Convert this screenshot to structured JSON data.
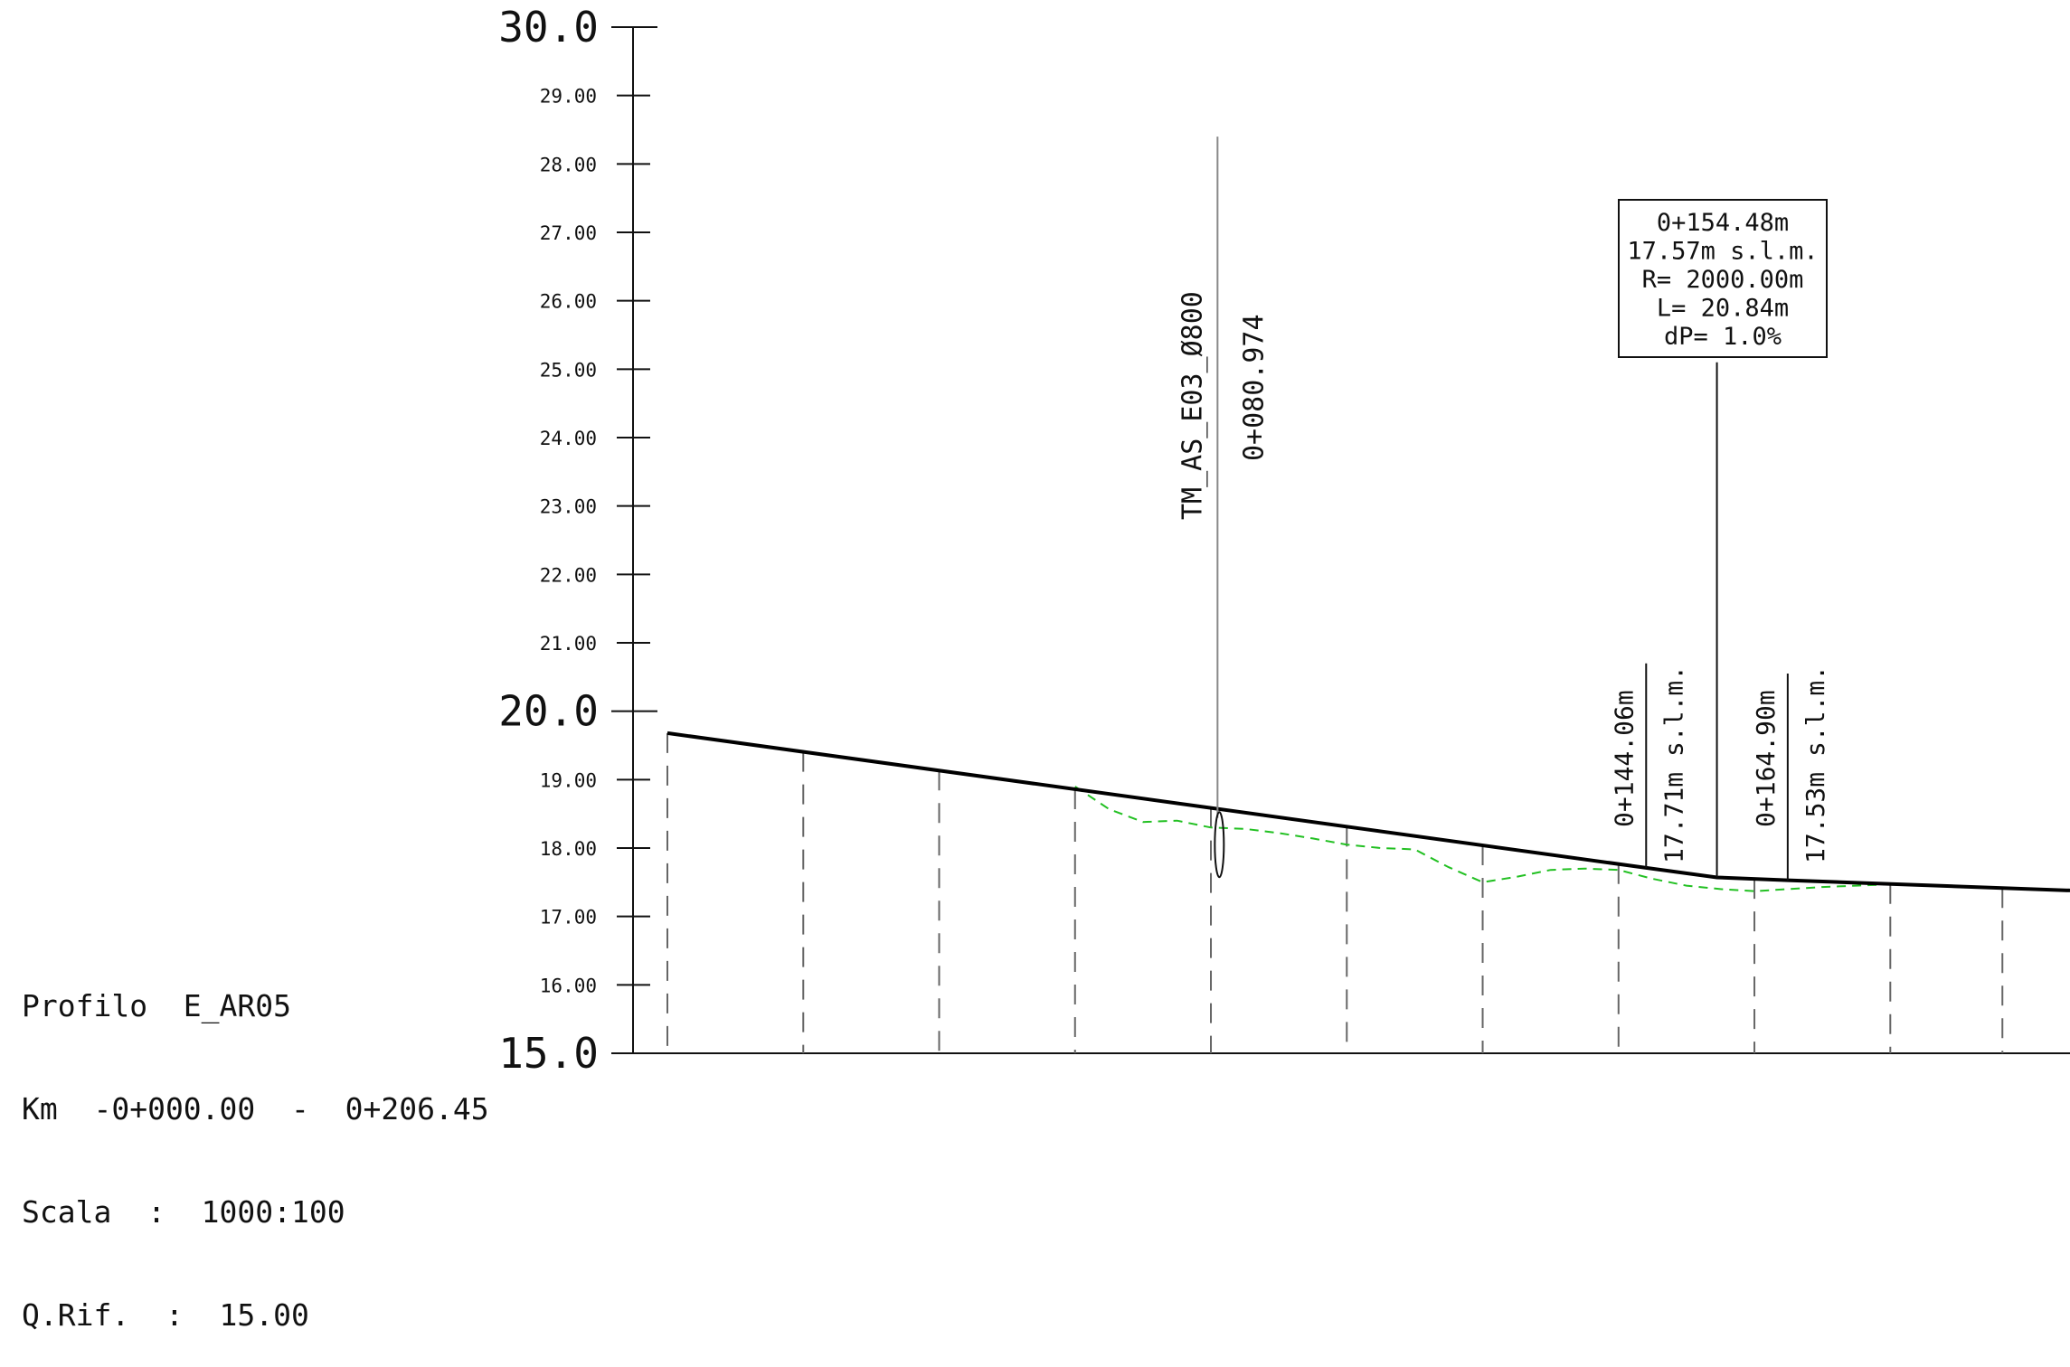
{
  "chart_data": {
    "type": "line",
    "xlim": [
      -0.25,
      206.45
    ],
    "ylim": [
      15.0,
      30.0
    ],
    "y_major_ticks": [
      {
        "value": 15.0,
        "label": "15.0"
      },
      {
        "value": 20.0,
        "label": "20.0"
      },
      {
        "value": 30.0,
        "label": "30.0"
      }
    ],
    "y_minor_ticks": [
      {
        "value": 16.0,
        "label": "16.00"
      },
      {
        "value": 17.0,
        "label": "17.00"
      },
      {
        "value": 18.0,
        "label": "18.00"
      },
      {
        "value": 19.0,
        "label": "19.00"
      },
      {
        "value": 21.0,
        "label": "21.00"
      },
      {
        "value": 22.0,
        "label": "22.00"
      },
      {
        "value": 23.0,
        "label": "23.00"
      },
      {
        "value": 24.0,
        "label": "24.00"
      },
      {
        "value": 25.0,
        "label": "25.00"
      },
      {
        "value": 26.0,
        "label": "26.00"
      },
      {
        "value": 27.0,
        "label": "27.00"
      },
      {
        "value": 28.0,
        "label": "28.00"
      },
      {
        "value": 29.0,
        "label": "29.00"
      }
    ],
    "project_profile": {
      "color": "#000000",
      "x": [
        0.0,
        144.06,
        154.48,
        164.9,
        206.45
      ],
      "y": [
        19.68,
        17.71,
        17.57,
        17.53,
        17.38
      ]
    },
    "ground_profile": {
      "color": "#22c022",
      "x": [
        60.0,
        65.0,
        70.0,
        75.0,
        80.0,
        85.0,
        90.0,
        95.0,
        100.0,
        105.0,
        110.0,
        115.0,
        120.0,
        125.0,
        130.0,
        135.0,
        140.0,
        145.0,
        150.0,
        155.0,
        160.0,
        165.0,
        170.0,
        175.0,
        180.0
      ],
      "y": [
        18.9,
        18.57,
        18.38,
        18.4,
        18.3,
        18.28,
        18.22,
        18.14,
        18.05,
        18.0,
        17.98,
        17.72,
        17.5,
        17.58,
        17.68,
        17.7,
        17.68,
        17.55,
        17.45,
        17.4,
        17.37,
        17.4,
        17.43,
        17.45,
        17.47
      ]
    },
    "station_lines_x": [
      0.0,
      20.0,
      40.0,
      60.0,
      80.0,
      100.0,
      120.0,
      140.0,
      160.0,
      180.0,
      196.5
    ],
    "pipe": {
      "x": 80.974,
      "name": "TM_AS_E03_Ø800",
      "station": "0+080.974",
      "line_top_y": 28.4,
      "ellipse_center_y": 18.05
    },
    "vertical_curve": {
      "x": 154.48,
      "leader_top_y": 25.1,
      "lines": [
        "0+154.48m",
        "17.57m  s.l.m.",
        "R=  2000.00m",
        "L=  20.84m",
        "dP=  1.0%"
      ]
    },
    "tangent_points": [
      {
        "x": 144.06,
        "y": 17.71,
        "station": "0+144.06m",
        "elev": "17.71m  s.l.m.",
        "line_top_y": 20.7
      },
      {
        "x": 164.9,
        "y": 17.53,
        "station": "0+164.90m",
        "elev": "17.53m  s.l.m.",
        "line_top_y": 20.55
      }
    ]
  },
  "info": {
    "line1": "Profilo  E_AR05",
    "line2": "Km  -0+000.00  -  0+206.45",
    "line3": "Scala  :  1000:100",
    "line4": "Q.Rif.  :  15.00"
  }
}
